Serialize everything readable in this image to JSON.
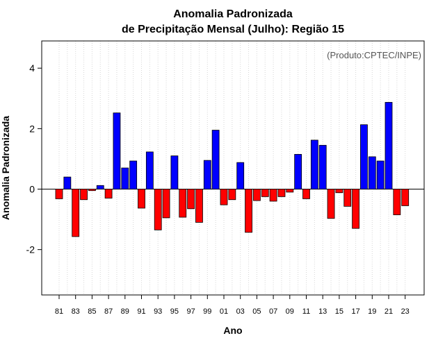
{
  "chart_data": {
    "type": "bar",
    "title_line1": "Anomalia Padronizada",
    "title_line2": "de Precipitação Mensal (Julho): Região 15",
    "xlabel": "Ano",
    "ylabel": "Anomalia Padronizada",
    "annotation": "(Produto:CPTEC/INPE)",
    "ylim": [
      -3.5,
      4.9
    ],
    "yticks": [
      -2,
      0,
      2,
      4
    ],
    "ytick_labels": [
      "-2",
      "0",
      "2",
      "4"
    ],
    "grid": "vertical dotted",
    "positive_color": "#0000ff",
    "negative_color": "#ff0000",
    "years": [
      "81",
      "82",
      "83",
      "84",
      "85",
      "86",
      "87",
      "88",
      "89",
      "90",
      "91",
      "92",
      "93",
      "94",
      "95",
      "96",
      "97",
      "98",
      "99",
      "00",
      "01",
      "02",
      "03",
      "04",
      "05",
      "06",
      "07",
      "08",
      "09",
      "10",
      "11",
      "12",
      "13",
      "14",
      "15",
      "16",
      "17",
      "18",
      "19",
      "20",
      "21",
      "22",
      "23"
    ],
    "xtick_labels": [
      "81",
      "83",
      "85",
      "87",
      "89",
      "91",
      "93",
      "95",
      "97",
      "99",
      "01",
      "03",
      "05",
      "07",
      "09",
      "11",
      "13",
      "15",
      "17",
      "19",
      "21",
      "23"
    ],
    "values": [
      -0.32,
      0.4,
      -1.57,
      -0.35,
      -0.05,
      0.12,
      -0.3,
      2.52,
      0.7,
      0.93,
      -0.63,
      1.23,
      -1.35,
      -0.95,
      1.1,
      -0.93,
      -0.65,
      -1.1,
      0.95,
      1.95,
      -0.52,
      -0.35,
      0.88,
      -1.43,
      -0.38,
      -0.25,
      -0.4,
      -0.25,
      -0.1,
      1.15,
      -0.32,
      1.62,
      1.45,
      -0.97,
      -0.12,
      -0.57,
      -1.3,
      2.13,
      1.07,
      0.93,
      2.87,
      -0.85,
      -0.55
    ]
  }
}
